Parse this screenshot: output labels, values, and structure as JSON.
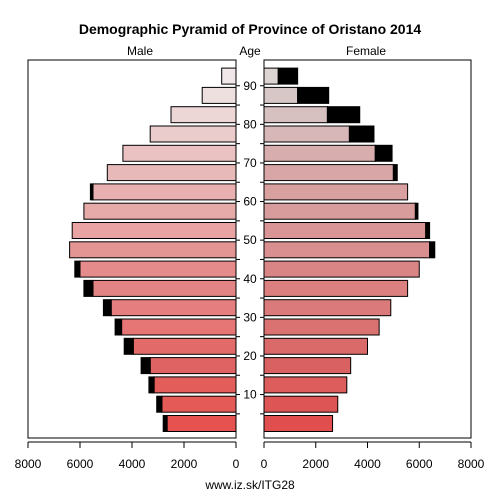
{
  "chart_data": {
    "type": "bar",
    "title": "Demographic Pyramid of Province of Oristano 2014",
    "left_label": "Male",
    "center_label": "Age",
    "right_label": "Female",
    "footer": "www.iz.sk/ITG28",
    "xlim": [
      0,
      8000
    ],
    "x_ticks": [
      0,
      2000,
      4000,
      6000,
      8000
    ],
    "x_tick_labels_left": [
      "8000",
      "6000",
      "4000",
      "2000",
      "0"
    ],
    "x_tick_labels_right": [
      "0",
      "2000",
      "4000",
      "6000",
      "8000"
    ],
    "age_tick_labels": [
      "10",
      "20",
      "30",
      "40",
      "50",
      "60",
      "70",
      "80",
      "90"
    ],
    "age_groups": [
      "0-4",
      "5-9",
      "10-14",
      "15-19",
      "20-24",
      "25-29",
      "30-34",
      "35-39",
      "40-44",
      "45-49",
      "50-54",
      "55-59",
      "60-64",
      "65-69",
      "70-74",
      "75-79",
      "80-84",
      "85-89",
      "90+"
    ],
    "series": [
      {
        "name": "Male",
        "values": [
          2650,
          2850,
          3150,
          3300,
          3950,
          4400,
          4800,
          5500,
          6000,
          6400,
          6300,
          5850,
          5500,
          4950,
          4350,
          3300,
          2500,
          1300,
          550
        ]
      },
      {
        "name": "Male surplus",
        "values": [
          150,
          200,
          200,
          350,
          350,
          250,
          300,
          350,
          200,
          0,
          0,
          0,
          100,
          0,
          0,
          0,
          0,
          0,
          0
        ]
      },
      {
        "name": "Female",
        "values": [
          2650,
          2850,
          3200,
          3350,
          4000,
          4450,
          4900,
          5550,
          6000,
          6400,
          6250,
          5850,
          5550,
          5000,
          4300,
          3300,
          2450,
          1300,
          550
        ]
      },
      {
        "name": "Female surplus",
        "values": [
          0,
          0,
          0,
          0,
          0,
          0,
          0,
          0,
          0,
          200,
          150,
          100,
          0,
          150,
          650,
          950,
          1250,
          1200,
          750
        ]
      }
    ],
    "male_colors": [
      "#e5524f",
      "#e35a57",
      "#e35e5b",
      "#e06363",
      "#e26b6a",
      "#e57675",
      "#e57e7e",
      "#e28484",
      "#e58b8b",
      "#e29593",
      "#e8a3a2",
      "#e6aaa9",
      "#e8b0b0",
      "#e8b9b9",
      "#ebc2c2",
      "#ebcccc",
      "#ecd6d6",
      "#efe0e0",
      "#f0e8e8"
    ],
    "female_colors": [
      "#e04e4e",
      "#dd5655",
      "#dd5c5c",
      "#d96161",
      "#d96a69",
      "#da7271",
      "#db7a7a",
      "#db7f7f",
      "#da8585",
      "#d98f8f",
      "#d99595",
      "#d99c9c",
      "#d9a0a0",
      "#d8a6a6",
      "#d8adad",
      "#d7b7b7",
      "#d6c0c0",
      "#d7c7c7",
      "#dcd3d3"
    ],
    "surplus_color": "#000000"
  }
}
